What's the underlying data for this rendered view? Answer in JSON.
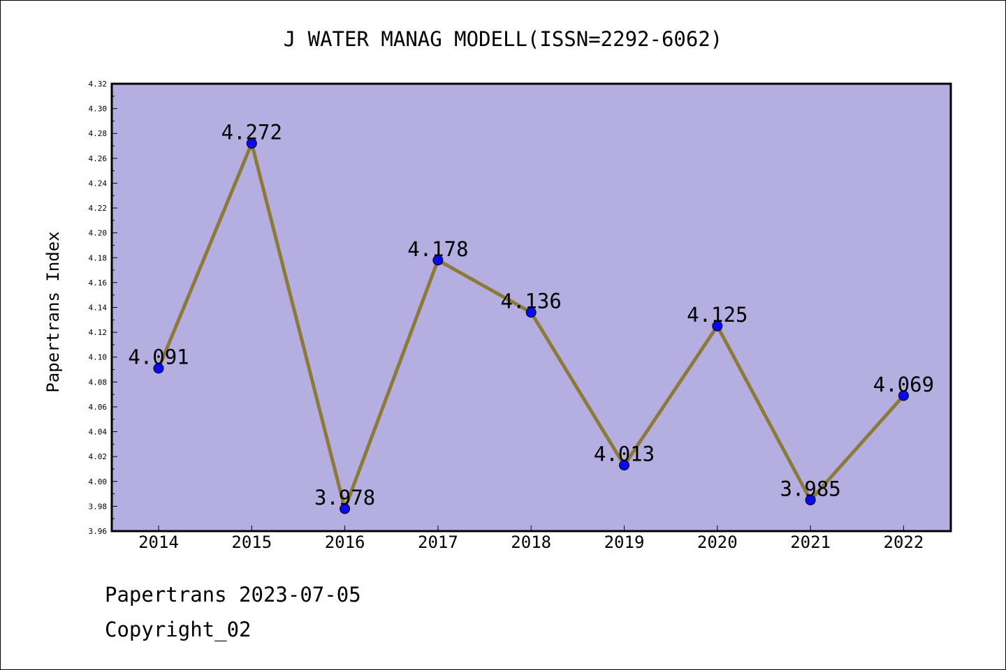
{
  "chart_data": {
    "type": "line",
    "title": "J WATER MANAG MODELL(ISSN=2292-6062)",
    "xlabel": "",
    "ylabel": "Papertrans Index",
    "categories": [
      "2014",
      "2015",
      "2016",
      "2017",
      "2018",
      "2019",
      "2020",
      "2021",
      "2022"
    ],
    "values": [
      4.091,
      4.272,
      3.978,
      4.178,
      4.136,
      4.013,
      4.125,
      3.985,
      4.069
    ],
    "data_labels": [
      "4.091",
      "4.272",
      "3.978",
      "4.178",
      "4.136",
      "4.013",
      "4.125",
      "3.985",
      "4.069"
    ],
    "ylim": [
      3.96,
      4.32
    ],
    "yticks": [
      "3.96",
      "3.98",
      "4.00",
      "4.02",
      "4.04",
      "4.06",
      "4.08",
      "4.10",
      "4.12",
      "4.14",
      "4.16",
      "4.18",
      "4.20",
      "4.22",
      "4.24",
      "4.26",
      "4.28",
      "4.30",
      "4.32"
    ],
    "grid": false,
    "colors": {
      "plot_background": "#b5aee1",
      "line": "#8b7a3a",
      "marker": "#0a0af0"
    }
  },
  "footer": {
    "date_line": "Papertrans 2023-07-05",
    "copyright": "Copyright_02"
  }
}
